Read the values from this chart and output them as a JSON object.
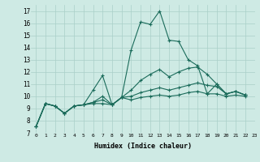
{
  "xlabel": "Humidex (Indice chaleur)",
  "bg_color": "#ceeae4",
  "grid_color": "#aacfc8",
  "line_color": "#1a6b5a",
  "xlim": [
    -0.5,
    23
  ],
  "ylim": [
    7,
    17.5
  ],
  "xticks": [
    0,
    1,
    2,
    3,
    4,
    5,
    6,
    7,
    8,
    9,
    10,
    11,
    12,
    13,
    14,
    15,
    16,
    17,
    18,
    19,
    20,
    21,
    22,
    23
  ],
  "yticks": [
    7,
    8,
    9,
    10,
    11,
    12,
    13,
    14,
    15,
    16,
    17
  ],
  "series": [
    [
      7.5,
      9.4,
      9.2,
      8.6,
      9.2,
      9.3,
      10.5,
      11.7,
      9.3,
      9.9,
      13.8,
      16.1,
      15.9,
      17.0,
      14.6,
      14.5,
      13.0,
      12.5,
      10.2,
      11.0,
      10.2,
      10.4,
      10.1
    ],
    [
      7.5,
      9.4,
      9.2,
      8.6,
      9.2,
      9.3,
      9.5,
      10.0,
      9.3,
      9.9,
      10.5,
      11.3,
      11.8,
      12.2,
      11.6,
      12.0,
      12.3,
      12.4,
      11.8,
      11.0,
      10.2,
      10.4,
      10.1
    ],
    [
      7.5,
      9.4,
      9.2,
      8.6,
      9.2,
      9.3,
      9.5,
      9.7,
      9.3,
      9.9,
      10.0,
      10.3,
      10.5,
      10.7,
      10.5,
      10.7,
      10.9,
      11.1,
      10.9,
      10.8,
      10.2,
      10.4,
      10.1
    ],
    [
      7.5,
      9.4,
      9.2,
      8.6,
      9.2,
      9.3,
      9.4,
      9.4,
      9.3,
      9.9,
      9.7,
      9.9,
      10.0,
      10.1,
      10.0,
      10.1,
      10.3,
      10.4,
      10.2,
      10.2,
      10.0,
      10.1,
      10.0
    ]
  ]
}
